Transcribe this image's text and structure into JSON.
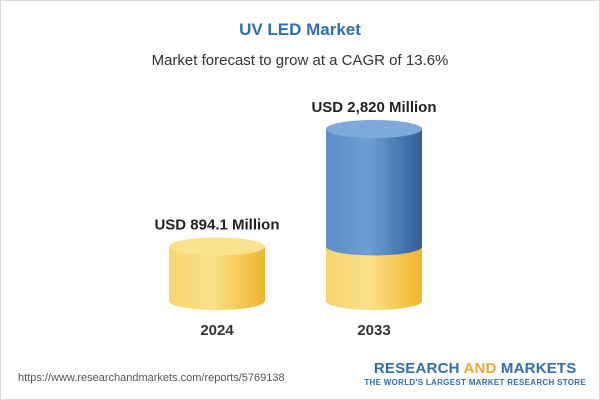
{
  "header": {
    "title": "UV LED Market",
    "subtitle": "Market forecast to grow at a CAGR of 13.6%"
  },
  "chart_data": {
    "type": "bar",
    "categories": [
      "2024",
      "2033"
    ],
    "values": [
      894.1,
      2820
    ],
    "value_labels": [
      "USD 894.1 Million",
      "USD 2,820 Million"
    ],
    "unit": "USD Million",
    "base_segment_value": 894.1,
    "colors": {
      "base": "#f6c744",
      "growth": "#4a7fbd",
      "label": "#222222"
    }
  },
  "footer": {
    "source_url": "https://www.researchandmarkets.com/reports/5769138",
    "brand_part1": "RESEARCH ",
    "brand_part2": "AND",
    "brand_part3": " MARKETS",
    "brand_tagline": "THE WORLD'S LARGEST MARKET RESEARCH STORE"
  }
}
